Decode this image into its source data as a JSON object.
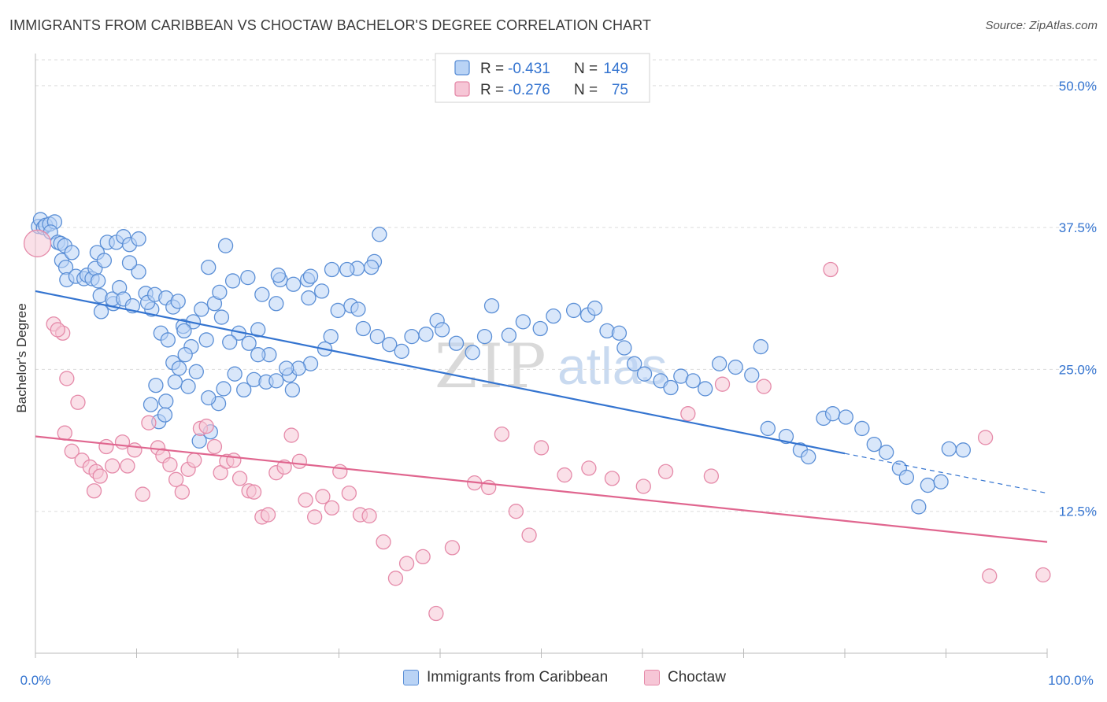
{
  "title": "IMMIGRANTS FROM CARIBBEAN VS CHOCTAW BACHELOR'S DEGREE CORRELATION CHART",
  "source": "Source: ZipAtlas.com",
  "watermark": {
    "zip": "ZIP",
    "atlas": "atlas"
  },
  "colors": {
    "blue_fill": "#b9d3f5",
    "blue_stroke": "#5b8fd6",
    "blue_line": "#3474d0",
    "pink_fill": "#f6c6d6",
    "pink_stroke": "#e58aa9",
    "pink_line": "#e0668f",
    "accent_text": "#3474d0",
    "grid": "#dddddd"
  },
  "legend_top": [
    {
      "r_label": "R = ",
      "r_value": "-0.431",
      "n_label": "N = ",
      "n_value": "149",
      "color": "blue"
    },
    {
      "r_label": "R = ",
      "r_value": "-0.276",
      "n_label": "N = ",
      "n_value": " 75",
      "color": "pink"
    }
  ],
  "chart_data": {
    "type": "scatter",
    "ylabel": "Bachelor's Degree",
    "xlabel": "",
    "xlim": [
      0,
      100
    ],
    "ylim": [
      0,
      52
    ],
    "x_tick_labels": [
      "0.0%",
      "100.0%"
    ],
    "y_ticks": [
      12.5,
      25.0,
      37.5,
      50.0
    ],
    "y_tick_labels": [
      "12.5%",
      "25.0%",
      "37.5%",
      "50.0%"
    ],
    "grid": true,
    "series": [
      {
        "name": "Immigrants from Caribbean",
        "color": "blue",
        "trend": {
          "x0": 0,
          "y0": 31.9,
          "x1": 80,
          "y1": 17.6,
          "dash_to_x": 100,
          "dash_to_y": 14.1
        },
        "points": [
          [
            0.3,
            37.6
          ],
          [
            0.5,
            38.2
          ],
          [
            0.8,
            37.5
          ],
          [
            1.0,
            37.7
          ],
          [
            1.4,
            37.8
          ],
          [
            1.9,
            38.0
          ],
          [
            1.5,
            37.1
          ],
          [
            2.2,
            36.2
          ],
          [
            2.5,
            36.1
          ],
          [
            2.9,
            35.9
          ],
          [
            2.6,
            34.6
          ],
          [
            3.6,
            35.3
          ],
          [
            3.0,
            34.0
          ],
          [
            3.1,
            32.9
          ],
          [
            4.0,
            33.2
          ],
          [
            4.8,
            33.0
          ],
          [
            5.1,
            33.3
          ],
          [
            5.6,
            33.0
          ],
          [
            6.1,
            35.3
          ],
          [
            5.9,
            33.9
          ],
          [
            6.8,
            34.6
          ],
          [
            7.1,
            36.2
          ],
          [
            8.0,
            36.2
          ],
          [
            8.7,
            36.7
          ],
          [
            9.3,
            36.0
          ],
          [
            10.2,
            36.5
          ],
          [
            6.4,
            31.5
          ],
          [
            6.2,
            32.8
          ],
          [
            7.7,
            30.8
          ],
          [
            6.5,
            30.1
          ],
          [
            7.6,
            31.2
          ],
          [
            8.3,
            32.2
          ],
          [
            8.7,
            31.2
          ],
          [
            9.6,
            30.6
          ],
          [
            10.9,
            31.7
          ],
          [
            11.5,
            30.3
          ],
          [
            10.2,
            33.6
          ],
          [
            9.3,
            34.4
          ],
          [
            11.1,
            30.9
          ],
          [
            11.8,
            31.6
          ],
          [
            12.9,
            31.3
          ],
          [
            13.6,
            30.5
          ],
          [
            12.4,
            28.2
          ],
          [
            14.6,
            28.8
          ],
          [
            13.1,
            27.6
          ],
          [
            15.4,
            27.0
          ],
          [
            14.8,
            26.3
          ],
          [
            15.9,
            24.8
          ],
          [
            13.6,
            25.6
          ],
          [
            14.2,
            25.1
          ],
          [
            15.1,
            23.5
          ],
          [
            12.9,
            22.2
          ],
          [
            13.8,
            23.9
          ],
          [
            11.9,
            23.6
          ],
          [
            12.2,
            20.4
          ],
          [
            12.8,
            21.0
          ],
          [
            11.4,
            21.9
          ],
          [
            16.2,
            18.7
          ],
          [
            17.3,
            19.5
          ],
          [
            18.1,
            22.0
          ],
          [
            17.1,
            22.5
          ],
          [
            18.6,
            23.3
          ],
          [
            19.7,
            24.6
          ],
          [
            20.6,
            23.2
          ],
          [
            21.6,
            24.1
          ],
          [
            22.8,
            23.9
          ],
          [
            23.8,
            24.0
          ],
          [
            25.1,
            24.5
          ],
          [
            22.0,
            28.5
          ],
          [
            21.1,
            27.3
          ],
          [
            22.4,
            31.6
          ],
          [
            23.8,
            30.8
          ],
          [
            24.2,
            32.9
          ],
          [
            25.5,
            32.5
          ],
          [
            27.0,
            31.3
          ],
          [
            26.9,
            32.9
          ],
          [
            28.3,
            31.9
          ],
          [
            29.9,
            30.2
          ],
          [
            29.2,
            27.9
          ],
          [
            28.6,
            26.8
          ],
          [
            27.2,
            25.5
          ],
          [
            26.0,
            25.1
          ],
          [
            25.4,
            23.2
          ],
          [
            24.8,
            25.1
          ],
          [
            23.1,
            26.3
          ],
          [
            22.0,
            26.3
          ],
          [
            20.1,
            28.2
          ],
          [
            19.2,
            27.4
          ],
          [
            18.4,
            29.6
          ],
          [
            16.9,
            27.6
          ],
          [
            15.6,
            29.2
          ],
          [
            14.1,
            31.0
          ],
          [
            14.7,
            28.4
          ],
          [
            16.4,
            30.3
          ],
          [
            17.7,
            30.8
          ],
          [
            18.2,
            31.8
          ],
          [
            19.5,
            32.8
          ],
          [
            17.1,
            34.0
          ],
          [
            18.8,
            35.9
          ],
          [
            21.0,
            33.1
          ],
          [
            24.0,
            33.3
          ],
          [
            27.2,
            33.2
          ],
          [
            29.3,
            33.8
          ],
          [
            31.8,
            33.9
          ],
          [
            33.5,
            34.5
          ],
          [
            34.0,
            36.9
          ],
          [
            33.2,
            34.0
          ],
          [
            30.8,
            33.8
          ],
          [
            31.2,
            30.6
          ],
          [
            31.9,
            30.3
          ],
          [
            32.4,
            28.6
          ],
          [
            33.8,
            27.9
          ],
          [
            35.0,
            27.2
          ],
          [
            36.2,
            26.6
          ],
          [
            37.2,
            27.9
          ],
          [
            38.6,
            28.1
          ],
          [
            39.7,
            29.3
          ],
          [
            40.2,
            28.5
          ],
          [
            41.6,
            27.3
          ],
          [
            43.2,
            26.5
          ],
          [
            44.4,
            27.9
          ],
          [
            45.1,
            30.6
          ],
          [
            46.8,
            28.0
          ],
          [
            48.2,
            29.2
          ],
          [
            49.9,
            28.6
          ],
          [
            51.2,
            29.7
          ],
          [
            53.2,
            30.2
          ],
          [
            54.6,
            29.8
          ],
          [
            55.3,
            30.4
          ],
          [
            56.5,
            28.4
          ],
          [
            57.7,
            28.2
          ],
          [
            58.2,
            26.9
          ],
          [
            59.2,
            25.5
          ],
          [
            60.2,
            24.6
          ],
          [
            61.8,
            24.0
          ],
          [
            62.8,
            23.4
          ],
          [
            63.8,
            24.4
          ],
          [
            65.0,
            24.0
          ],
          [
            66.2,
            23.3
          ],
          [
            67.6,
            25.5
          ],
          [
            69.2,
            25.2
          ],
          [
            70.8,
            24.5
          ],
          [
            71.7,
            27.0
          ],
          [
            72.4,
            19.8
          ],
          [
            74.2,
            19.1
          ],
          [
            75.6,
            17.9
          ],
          [
            76.4,
            17.3
          ],
          [
            77.9,
            20.7
          ],
          [
            78.8,
            21.1
          ],
          [
            80.1,
            20.8
          ],
          [
            81.7,
            19.8
          ],
          [
            82.9,
            18.4
          ],
          [
            84.1,
            17.7
          ],
          [
            85.4,
            16.3
          ],
          [
            86.1,
            15.5
          ],
          [
            87.3,
            12.9
          ],
          [
            88.2,
            14.8
          ],
          [
            89.5,
            15.1
          ],
          [
            90.3,
            18.0
          ],
          [
            91.7,
            17.9
          ]
        ]
      },
      {
        "name": "Choctaw",
        "color": "pink",
        "trend": {
          "x0": 0,
          "y0": 19.1,
          "x1": 100,
          "y1": 9.8
        },
        "points": [
          [
            0.2,
            36.1
          ],
          [
            1.8,
            29.0
          ],
          [
            2.7,
            28.2
          ],
          [
            2.2,
            28.5
          ],
          [
            3.1,
            24.2
          ],
          [
            2.9,
            19.4
          ],
          [
            4.2,
            22.1
          ],
          [
            3.6,
            17.8
          ],
          [
            4.6,
            17.0
          ],
          [
            5.4,
            16.4
          ],
          [
            6.0,
            16.0
          ],
          [
            6.4,
            15.6
          ],
          [
            5.8,
            14.3
          ],
          [
            7.0,
            18.2
          ],
          [
            7.6,
            16.5
          ],
          [
            8.6,
            18.6
          ],
          [
            9.1,
            16.5
          ],
          [
            9.8,
            17.9
          ],
          [
            10.6,
            14.0
          ],
          [
            11.2,
            20.3
          ],
          [
            12.1,
            18.1
          ],
          [
            12.6,
            17.4
          ],
          [
            13.3,
            16.6
          ],
          [
            13.9,
            15.3
          ],
          [
            14.5,
            14.2
          ],
          [
            15.1,
            16.2
          ],
          [
            15.7,
            17.0
          ],
          [
            16.3,
            19.8
          ],
          [
            16.9,
            20.0
          ],
          [
            17.7,
            18.2
          ],
          [
            18.3,
            15.9
          ],
          [
            18.9,
            16.9
          ],
          [
            19.6,
            17.0
          ],
          [
            20.2,
            15.4
          ],
          [
            21.1,
            14.3
          ],
          [
            21.6,
            14.2
          ],
          [
            22.4,
            12.0
          ],
          [
            23.0,
            12.2
          ],
          [
            23.8,
            15.9
          ],
          [
            24.6,
            16.4
          ],
          [
            25.3,
            19.2
          ],
          [
            26.1,
            16.9
          ],
          [
            26.7,
            13.5
          ],
          [
            27.6,
            12.0
          ],
          [
            28.4,
            13.8
          ],
          [
            29.3,
            12.8
          ],
          [
            30.1,
            16.0
          ],
          [
            31.0,
            14.1
          ],
          [
            32.1,
            12.2
          ],
          [
            33.0,
            12.1
          ],
          [
            34.4,
            9.8
          ],
          [
            35.6,
            6.6
          ],
          [
            36.7,
            7.9
          ],
          [
            38.3,
            8.5
          ],
          [
            39.6,
            3.5
          ],
          [
            41.2,
            9.3
          ],
          [
            43.4,
            15.0
          ],
          [
            44.8,
            14.6
          ],
          [
            46.1,
            19.3
          ],
          [
            47.5,
            12.5
          ],
          [
            48.8,
            10.4
          ],
          [
            50.0,
            18.1
          ],
          [
            52.3,
            15.7
          ],
          [
            54.7,
            16.3
          ],
          [
            57.0,
            15.4
          ],
          [
            60.1,
            14.7
          ],
          [
            62.3,
            16.0
          ],
          [
            64.5,
            21.1
          ],
          [
            66.8,
            15.6
          ],
          [
            67.9,
            23.7
          ],
          [
            72.0,
            23.5
          ],
          [
            78.6,
            33.8
          ],
          [
            93.9,
            19.0
          ],
          [
            94.3,
            6.8
          ],
          [
            99.6,
            6.9
          ]
        ]
      }
    ]
  },
  "legend_bottom": [
    {
      "label": "Immigrants from Caribbean",
      "color": "blue"
    },
    {
      "label": "Choctaw",
      "color": "pink"
    }
  ]
}
